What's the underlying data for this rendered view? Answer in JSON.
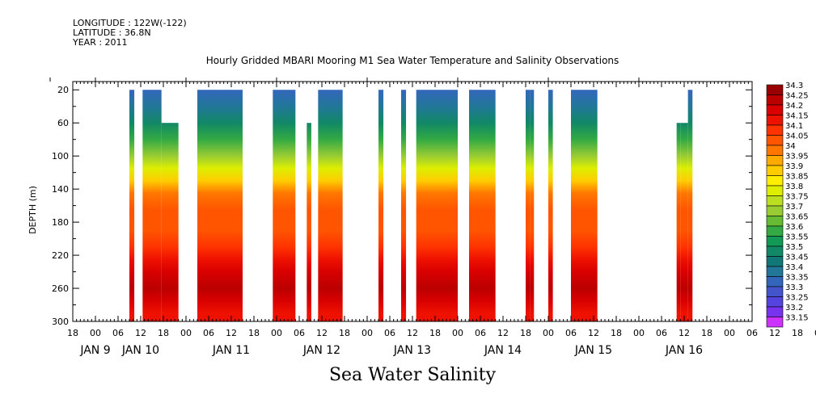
{
  "header": {
    "longitude": "LONGITUDE : 122W(-122)",
    "latitude": "LATITUDE : 36.8N",
    "year": "YEAR : 2011"
  },
  "chart_data": {
    "type": "heatmap",
    "title": "Hourly Gridded MBARI Mooring M1 Sea Water Temperature and Salinity Observations",
    "xlabel": "Sea Water Salinity",
    "ylabel": "DEPTH (m)",
    "x_unit": "hours since JAN 9 00:00",
    "xlim": [
      -6,
      174
    ],
    "ylim": [
      300,
      10
    ],
    "y_inverted": true,
    "yticks": [
      20,
      60,
      100,
      140,
      180,
      220,
      260,
      300
    ],
    "xtick_labels": [
      "18",
      "00",
      "06",
      "12",
      "18",
      "00",
      "06",
      "12",
      "18",
      "00",
      "06",
      "12",
      "18",
      "00",
      "06",
      "12",
      "18",
      "00",
      "06",
      "12",
      "18",
      "00",
      "06",
      "12",
      "18",
      "00",
      "06",
      "12",
      "18",
      "00",
      "06",
      "12",
      "18",
      "00",
      "06",
      "12",
      "18"
    ],
    "date_labels": [
      {
        "label": "JAN  9",
        "hour": 0
      },
      {
        "label": "JAN 10",
        "hour": 12
      },
      {
        "label": "JAN 11",
        "hour": 36
      },
      {
        "label": "JAN 12",
        "hour": 60
      },
      {
        "label": "JAN 13",
        "hour": 84
      },
      {
        "label": "JAN 14",
        "hour": 108
      },
      {
        "label": "JAN 15",
        "hour": 132
      },
      {
        "label": "JAN 16",
        "hour": 156
      }
    ],
    "colorbar": {
      "levels": [
        "34.3",
        "34.25",
        "34.2",
        "34.15",
        "34.1",
        "34.05",
        "34",
        "33.95",
        "33.9",
        "33.85",
        "33.8",
        "33.75",
        "33.7",
        "33.65",
        "33.6",
        "33.55",
        "33.5",
        "33.45",
        "33.4",
        "33.35",
        "33.3",
        "33.25",
        "33.2",
        "33.15"
      ],
      "colors": [
        "#990000",
        "#bb0000",
        "#d90000",
        "#ee1100",
        "#ff3300",
        "#ff5500",
        "#ff7700",
        "#ffaa00",
        "#ffcc00",
        "#ffee00",
        "#ddee00",
        "#bbdd22",
        "#99cc33",
        "#66bb33",
        "#33aa44",
        "#119955",
        "#118866",
        "#117777",
        "#227799",
        "#3366bb",
        "#4455cc",
        "#5544dd",
        "#7733ee",
        "#cc33ff"
      ]
    },
    "profile": [
      {
        "depth": 20,
        "value": 33.36
      },
      {
        "depth": 40,
        "value": 33.42
      },
      {
        "depth": 60,
        "value": 33.52
      },
      {
        "depth": 80,
        "value": 33.64
      },
      {
        "depth": 100,
        "value": 33.74
      },
      {
        "depth": 115,
        "value": 33.84
      },
      {
        "depth": 130,
        "value": 33.94
      },
      {
        "depth": 145,
        "value": 34.04
      },
      {
        "depth": 165,
        "value": 34.07
      },
      {
        "depth": 190,
        "value": 34.09
      },
      {
        "depth": 210,
        "value": 34.14
      },
      {
        "depth": 225,
        "value": 34.19
      },
      {
        "depth": 240,
        "value": 34.24
      },
      {
        "depth": 260,
        "value": 34.26
      },
      {
        "depth": 275,
        "value": 34.22
      },
      {
        "depth": 290,
        "value": 34.18
      },
      {
        "depth": 300,
        "value": 34.18
      }
    ],
    "segments": [
      {
        "x0": 9,
        "x1": 10.3,
        "top": 20
      },
      {
        "x0": 12.5,
        "x1": 17.5,
        "top": 20
      },
      {
        "x0": 17.5,
        "x1": 22,
        "top": 60
      },
      {
        "x0": 27,
        "x1": 39,
        "top": 20
      },
      {
        "x0": 47,
        "x1": 53,
        "top": 20
      },
      {
        "x0": 56,
        "x1": 57.2,
        "top": 60
      },
      {
        "x0": 59,
        "x1": 65.5,
        "top": 20
      },
      {
        "x0": 75,
        "x1": 76.3,
        "top": 20
      },
      {
        "x0": 81,
        "x1": 82.3,
        "top": 20
      },
      {
        "x0": 85,
        "x1": 96,
        "top": 20
      },
      {
        "x0": 99,
        "x1": 106,
        "top": 20
      },
      {
        "x0": 114,
        "x1": 115.2,
        "top": 20
      },
      {
        "x0": 115.2,
        "x1": 116.2,
        "top": 20
      },
      {
        "x0": 120,
        "x1": 121.2,
        "top": 20
      },
      {
        "x0": 126,
        "x1": 133,
        "top": 20
      },
      {
        "x0": 154,
        "x1": 155,
        "top": 60
      },
      {
        "x0": 155,
        "x1": 157,
        "top": 60
      },
      {
        "x0": 157,
        "x1": 158.2,
        "top": 20
      }
    ]
  }
}
